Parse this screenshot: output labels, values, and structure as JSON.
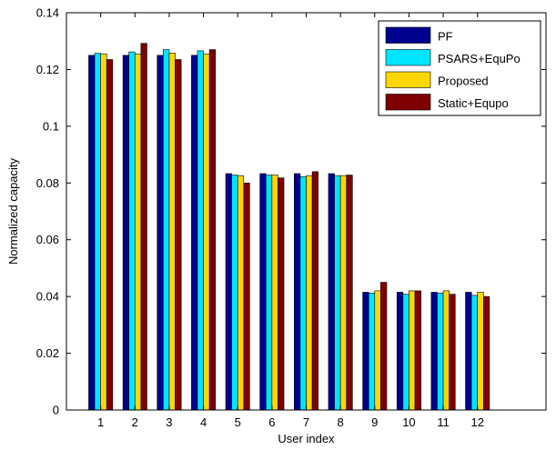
{
  "chart_data": {
    "type": "bar",
    "title": "",
    "xlabel": "User index",
    "ylabel": "Normalized capacity",
    "categories": [
      "1",
      "2",
      "3",
      "4",
      "5",
      "6",
      "7",
      "8",
      "9",
      "10",
      "11",
      "12"
    ],
    "xlim": [
      0,
      14
    ],
    "ylim": [
      0,
      0.14
    ],
    "yticks": [
      "0",
      "0.02",
      "0.04",
      "0.06",
      "0.08",
      "0.1",
      "0.12",
      "0.14"
    ],
    "grid": false,
    "legend_position": "top-right",
    "series": [
      {
        "name": "PF",
        "color": "#00008f",
        "values": [
          0.125,
          0.125,
          0.125,
          0.125,
          0.0833,
          0.0833,
          0.0833,
          0.0833,
          0.0415,
          0.0415,
          0.0415,
          0.0415
        ]
      },
      {
        "name": "PSARS+EquPo",
        "color": "#00e5ff",
        "values": [
          0.1257,
          0.1262,
          0.127,
          0.1266,
          0.0828,
          0.0828,
          0.0822,
          0.0826,
          0.0412,
          0.0408,
          0.0412,
          0.0404
        ]
      },
      {
        "name": "Proposed",
        "color": "#ffd700",
        "values": [
          0.1255,
          0.1255,
          0.1258,
          0.1255,
          0.0826,
          0.0828,
          0.0826,
          0.0826,
          0.042,
          0.042,
          0.042,
          0.0415
        ]
      },
      {
        "name": "Static+Equpo",
        "color": "#7f0000",
        "values": [
          0.1235,
          0.1292,
          0.1235,
          0.127,
          0.08,
          0.0818,
          0.084,
          0.0828,
          0.045,
          0.042,
          0.0408,
          0.04
        ]
      }
    ]
  }
}
